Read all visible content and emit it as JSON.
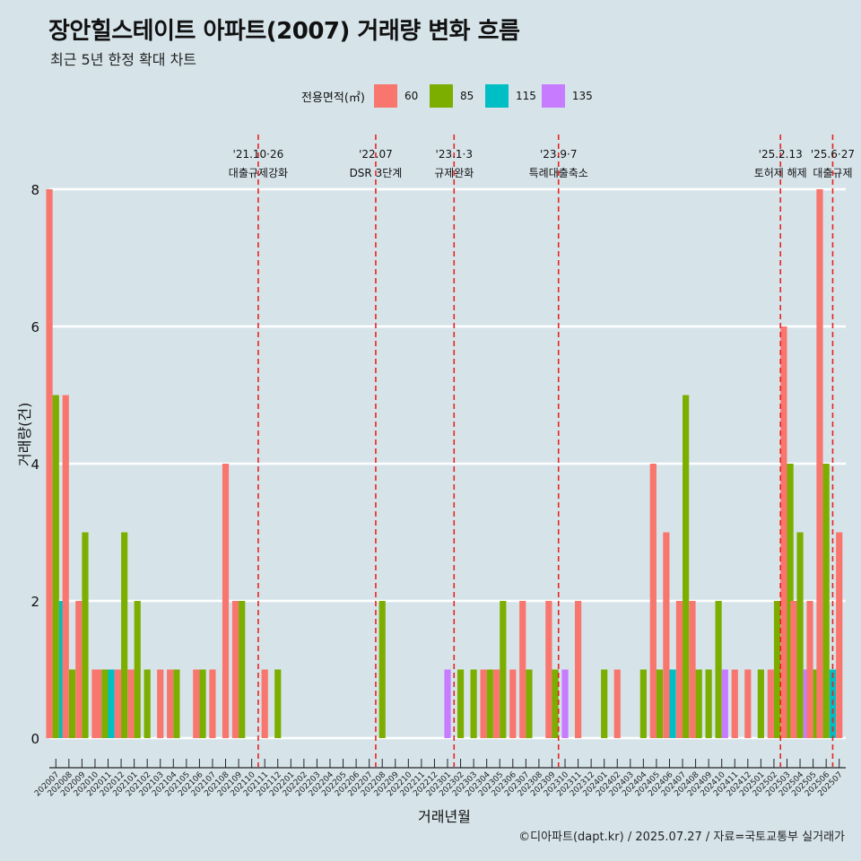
{
  "title": "장안힐스테이트 아파트(2007) 거래량 변화 흐름",
  "subtitle": "최근 5년 한정 확대 차트",
  "legend": {
    "title": "전용면적(㎡)",
    "items": [
      {
        "label": "60",
        "color": "#f8766d"
      },
      {
        "label": "85",
        "color": "#7cae00"
      },
      {
        "label": "115",
        "color": "#00bfc4"
      },
      {
        "label": "135",
        "color": "#c77cff"
      }
    ]
  },
  "caption": "©디아파트(dapt.kr) / 2025.07.27 / 자료=국토교통부 실거래가",
  "chart_data": {
    "type": "bar",
    "xlabel": "거래년월",
    "ylabel": "거래량(건)",
    "ylim": [
      0,
      8
    ],
    "y_ticks": [
      0,
      2,
      4,
      6,
      8
    ],
    "grid": true,
    "legend_position": "top",
    "categories": [
      "202007",
      "202008",
      "202009",
      "202010",
      "202011",
      "202012",
      "202101",
      "202102",
      "202103",
      "202104",
      "202105",
      "202106",
      "202107",
      "202108",
      "202109",
      "202110",
      "202111",
      "202112",
      "202201",
      "202202",
      "202203",
      "202204",
      "202205",
      "202206",
      "202207",
      "202208",
      "202209",
      "202210",
      "202211",
      "202212",
      "202301",
      "202302",
      "202303",
      "202304",
      "202305",
      "202306",
      "202307",
      "202308",
      "202309",
      "202310",
      "202311",
      "202312",
      "202401",
      "202402",
      "202403",
      "202404",
      "202405",
      "202406",
      "202407",
      "202408",
      "202409",
      "202410",
      "202411",
      "202412",
      "202501",
      "202502",
      "202503",
      "202504",
      "202505",
      "202506",
      "202507"
    ],
    "series": [
      {
        "name": "60",
        "values": [
          8,
          5,
          2,
          1,
          1,
          1,
          1,
          0,
          1,
          1,
          0,
          1,
          1,
          4,
          2,
          0,
          1,
          0,
          0,
          0,
          0,
          0,
          0,
          0,
          0,
          0,
          0,
          0,
          0,
          0,
          0,
          0,
          0,
          1,
          1,
          1,
          2,
          0,
          2,
          0,
          2,
          0,
          0,
          1,
          0,
          0,
          4,
          3,
          2,
          2,
          0,
          0,
          1,
          1,
          0,
          1,
          6,
          2,
          2,
          8,
          3
        ]
      },
      {
        "name": "85",
        "values": [
          5,
          1,
          3,
          0,
          1,
          3,
          2,
          1,
          0,
          1,
          0,
          1,
          0,
          0,
          2,
          0,
          0,
          1,
          0,
          0,
          0,
          0,
          0,
          0,
          0,
          2,
          0,
          0,
          0,
          0,
          0,
          1,
          1,
          1,
          2,
          0,
          1,
          0,
          1,
          0,
          0,
          0,
          1,
          0,
          0,
          1,
          1,
          0,
          5,
          1,
          1,
          2,
          0,
          0,
          1,
          2,
          4,
          3,
          1,
          4,
          0
        ]
      },
      {
        "name": "115",
        "values": [
          2,
          0,
          0,
          0,
          1,
          0,
          0,
          0,
          0,
          0,
          0,
          0,
          0,
          0,
          0,
          0,
          0,
          0,
          0,
          0,
          0,
          0,
          0,
          0,
          0,
          0,
          0,
          0,
          0,
          0,
          0,
          0,
          0,
          0,
          0,
          0,
          0,
          0,
          0,
          0,
          0,
          0,
          0,
          0,
          0,
          0,
          0,
          1,
          0,
          0,
          0,
          0,
          0,
          0,
          0,
          0,
          0,
          0,
          0,
          1,
          0
        ]
      },
      {
        "name": "135",
        "values": [
          0,
          0,
          0,
          0,
          1,
          0,
          0,
          0,
          0,
          0,
          0,
          0,
          0,
          0,
          0,
          0,
          0,
          0,
          0,
          0,
          0,
          0,
          0,
          0,
          0,
          0,
          0,
          0,
          0,
          0,
          1,
          0,
          0,
          0,
          0,
          0,
          0,
          0,
          0,
          1,
          0,
          0,
          0,
          0,
          0,
          0,
          0,
          0,
          0,
          0,
          0,
          1,
          0,
          0,
          0,
          0,
          0,
          1,
          0,
          0,
          0
        ]
      }
    ],
    "annotations": [
      {
        "after": "202110",
        "date": "'21.10·26",
        "label": "대출규제강화",
        "line_color": "#e8231f"
      },
      {
        "after": "202207",
        "date": "'22.07",
        "label": "DSR 3단계",
        "line_color": "#e8231f"
      },
      {
        "after": "202301",
        "date": "'23.1·3",
        "label": "규제완화",
        "line_color": "#e8231f"
      },
      {
        "after": "202309",
        "date": "'23.9·7",
        "label": "특례대출축소",
        "line_color": "#e8231f"
      },
      {
        "after": "202502",
        "date": "'25.2.13",
        "label": "토허제 해제",
        "line_color": "#e8231f"
      },
      {
        "after": "202506",
        "date": "'25.6·27",
        "label": "대출규제",
        "line_color": "#e8231f"
      }
    ]
  }
}
